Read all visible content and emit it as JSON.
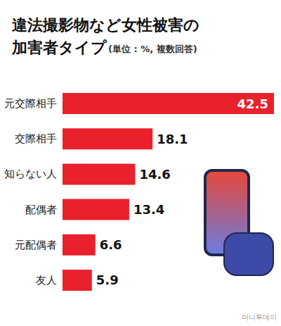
{
  "chart_data": {
    "type": "bar",
    "title": "違法撮影物など女性被害の\n加害者タイプ",
    "subtitle": "(単位 : %, 複数回答)",
    "annotation": "머니투데이",
    "categories": [
      "元交際相手",
      "交際相手",
      "知らない人",
      "配偶者",
      "元配偶者",
      "友人"
    ],
    "values": [
      42.5,
      18.1,
      14.6,
      13.4,
      6.6,
      5.9
    ],
    "color": "#e8212c",
    "orientation": "horizontal",
    "xlim": [
      0,
      42.5
    ],
    "data_labels": true,
    "tick_labels": "y",
    "grid": false
  }
}
